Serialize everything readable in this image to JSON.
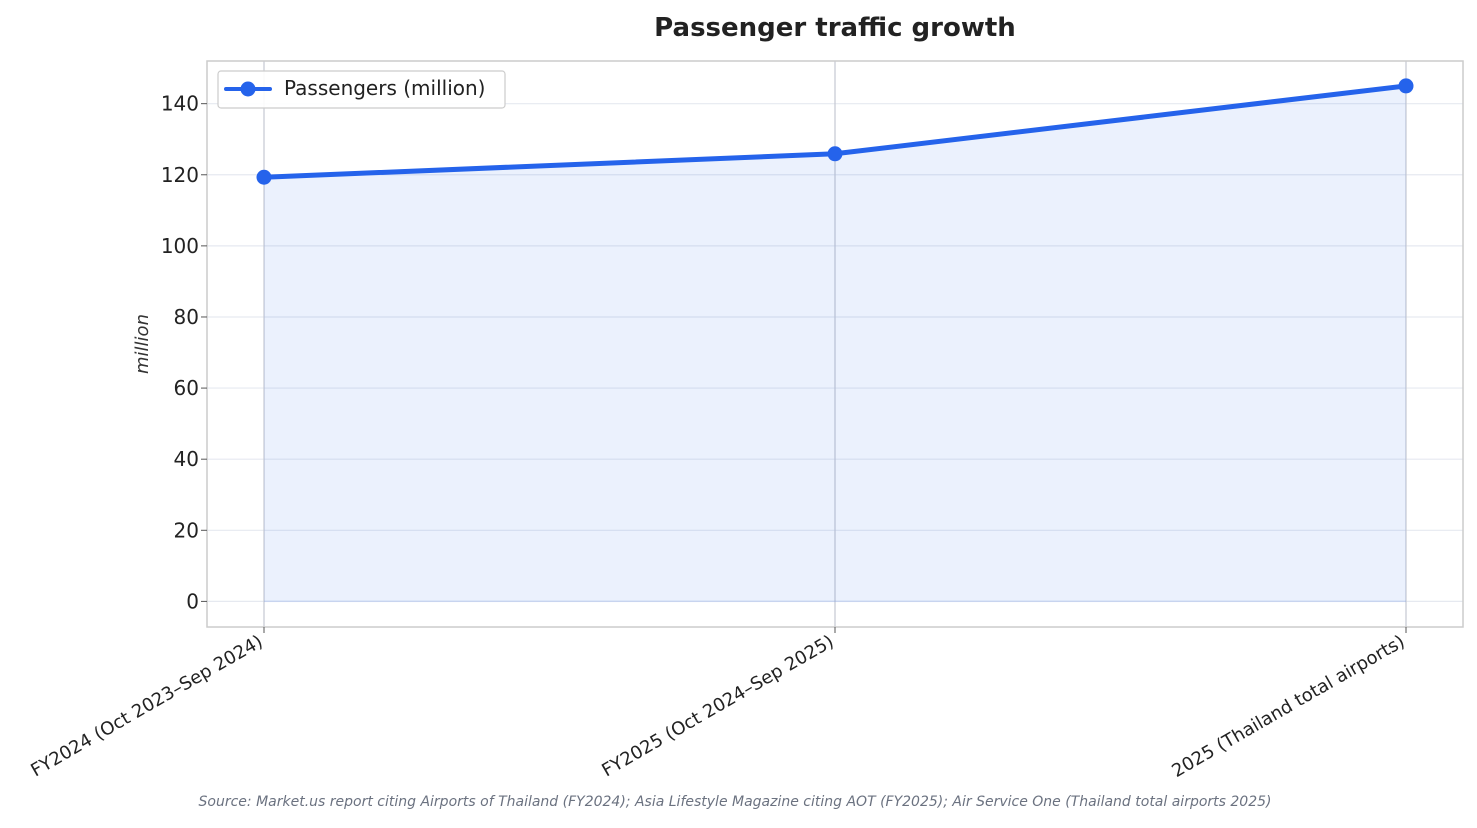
{
  "chart_data": {
    "type": "line",
    "title": "Passenger traffic growth",
    "xlabel": "",
    "ylabel": "million",
    "categories": [
      "FY2024 (Oct 2023–Sep 2024)",
      "FY2025 (Oct 2024–Sep 2025)",
      "2025 (Thailand total airports)"
    ],
    "series": [
      {
        "name": "Passengers (million)",
        "values": [
          119.3,
          125.9,
          145.0
        ]
      }
    ],
    "ylim": [
      -7.2,
      152.0
    ],
    "yticks": [
      0,
      20,
      40,
      60,
      80,
      100,
      120,
      140
    ],
    "grid": true,
    "area_fill": true,
    "legend": "top-left",
    "source_note": "Source: Market.us report citing Airports of Thailand (FY2024); Asia Lifestyle Magazine citing AOT (FY2025); Air Service One (Thailand total airports 2025)",
    "colors": {
      "line": "#2563eb",
      "fill": "#2563eb",
      "grid": "#e6e9f0",
      "frame": "#cccccc",
      "text": "#222222",
      "muted_text": "#6b7280"
    }
  }
}
